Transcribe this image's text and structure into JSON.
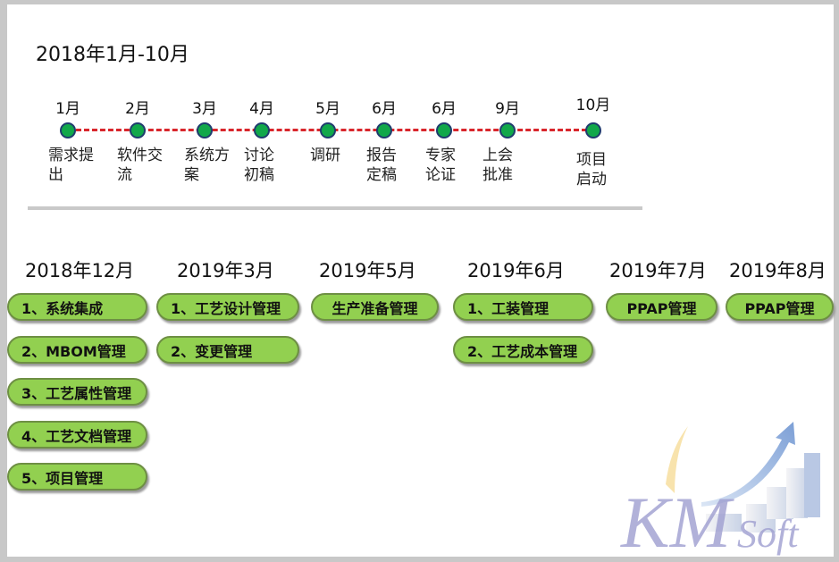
{
  "title": "2018年1月-10月",
  "timeline": [
    {
      "month": "1月",
      "desc": [
        "需求提",
        "出"
      ]
    },
    {
      "month": "2月",
      "desc": [
        "软件交",
        "流"
      ]
    },
    {
      "month": "3月",
      "desc": [
        "系统方",
        "案"
      ]
    },
    {
      "month": "4月",
      "desc": [
        "讨论",
        "初稿"
      ]
    },
    {
      "month": "5月",
      "desc": [
        "调研",
        ""
      ]
    },
    {
      "month": "6月",
      "desc": [
        "报告",
        "定稿"
      ]
    },
    {
      "month": "6月",
      "desc": [
        "专家",
        "论证"
      ]
    },
    {
      "month": "9月",
      "desc": [
        "上会",
        "批准"
      ]
    },
    {
      "month": "10月",
      "desc": [
        "项目",
        "启动"
      ]
    }
  ],
  "phases": [
    {
      "date": "2018年12月",
      "items": [
        "1、系统集成",
        "2、MBOM管理",
        "3、工艺属性管理",
        "4、工艺文档管理",
        "5、项目管理"
      ]
    },
    {
      "date": "2019年3月",
      "items": [
        "1、工艺设计管理",
        "2、变更管理"
      ]
    },
    {
      "date": "2019年5月",
      "items": [
        "生产准备管理"
      ]
    },
    {
      "date": "2019年6月",
      "items": [
        "1、工装管理",
        "2、工艺成本管理"
      ]
    },
    {
      "date": "2019年7月",
      "items": [
        "PPAP管理"
      ]
    },
    {
      "date": "2019年8月",
      "items": [
        "PPAP管理"
      ]
    }
  ],
  "logo": {
    "text": "KMSoft"
  },
  "colors": {
    "pill": "#92d050",
    "node": "#11a84a",
    "line": "#d9262c"
  }
}
